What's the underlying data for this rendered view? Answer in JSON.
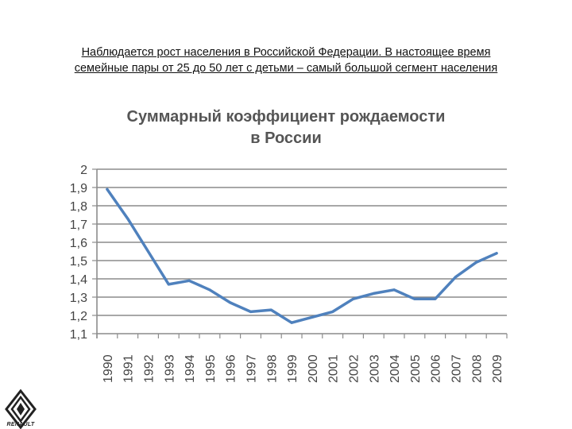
{
  "caption": {
    "line1": "Наблюдается рост населения в Российской Федерации. В настоящее время",
    "line2": "семейные пары от 25 до 50 лет с детьми – самый большой сегмент населения"
  },
  "logo": {
    "text": "RENAULT",
    "icon": "renault-diamond-logo"
  },
  "chart_data": {
    "type": "line",
    "title_line1": "Суммарный коэффициент рождаемости",
    "title_line2": "в России",
    "xlabel": "",
    "ylabel": "",
    "x": [
      "1990",
      "1991",
      "1992",
      "1993",
      "1994",
      "1995",
      "1996",
      "1997",
      "1998",
      "1999",
      "2000",
      "2001",
      "2002",
      "2003",
      "2004",
      "2005",
      "2006",
      "2007",
      "2008",
      "2009"
    ],
    "series": [
      {
        "values": [
          1.89,
          1.73,
          1.55,
          1.37,
          1.39,
          1.34,
          1.27,
          1.22,
          1.23,
          1.16,
          1.19,
          1.22,
          1.29,
          1.32,
          1.34,
          1.29,
          1.29,
          1.41,
          1.49,
          1.54
        ],
        "color": "#4f81bd"
      }
    ],
    "ylim": [
      1.1,
      2.0
    ],
    "yticks": [
      "1,1",
      "1,2",
      "1,3",
      "1,4",
      "1,5",
      "1,6",
      "1,7",
      "1,8",
      "1,9",
      "2"
    ],
    "grid": true,
    "legend": "none"
  }
}
